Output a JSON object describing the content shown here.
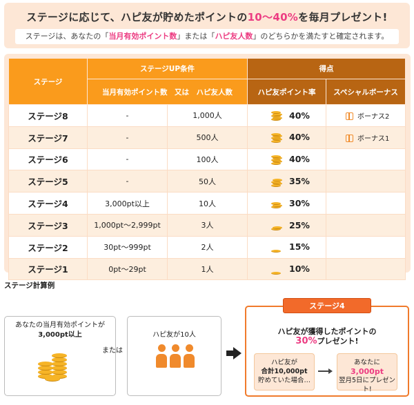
{
  "banner": {
    "title_pre": "ステージに応じて、ハピ友が貯めたポイントの",
    "title_hl": "10〜40%",
    "title_post": "を毎月プレゼント!",
    "sub_pre": "ステージは、あなたの「",
    "sub_pk1": "当月有効ポイント数",
    "sub_mid": "」または「",
    "sub_pk2": "ハピ友人数",
    "sub_post": "」のどちらかを満たすと確定されます。"
  },
  "table": {
    "headers": {
      "stage": "ステージ",
      "condition": "ステージUP条件",
      "points": "得点",
      "condition_sub": "当月有効ポイント数　又は　ハピ友人数",
      "rate": "ハピ友ポイント率",
      "bonus": "スペシャルボーナス"
    },
    "rows": [
      {
        "stage": "ステージ8",
        "points": "-",
        "friends": "1,000人",
        "rate": "40%",
        "bonus": "ボーナス2"
      },
      {
        "stage": "ステージ7",
        "points": "-",
        "friends": "500人",
        "rate": "40%",
        "bonus": "ボーナス1"
      },
      {
        "stage": "ステージ6",
        "points": "-",
        "friends": "100人",
        "rate": "40%",
        "bonus": ""
      },
      {
        "stage": "ステージ5",
        "points": "-",
        "friends": "50人",
        "rate": "35%",
        "bonus": ""
      },
      {
        "stage": "ステージ4",
        "points": "3,000pt以上",
        "friends": "10人",
        "rate": "30%",
        "bonus": ""
      },
      {
        "stage": "ステージ3",
        "points": "1,000pt〜2,999pt",
        "friends": "3人",
        "rate": "25%",
        "bonus": ""
      },
      {
        "stage": "ステージ2",
        "points": "30pt〜999pt",
        "friends": "2人",
        "rate": "15%",
        "bonus": ""
      },
      {
        "stage": "ステージ1",
        "points": "0pt〜29pt",
        "friends": "1人",
        "rate": "10%",
        "bonus": ""
      }
    ]
  },
  "example": {
    "title": "ステージ計算例",
    "box1_line1": "あなたの当月有効ポイントが",
    "box1_line2": "3,000pt以上",
    "or": "または",
    "box2_line1": "ハピ友が10人",
    "stage_tab": "ステージ4",
    "result_line1": "ハピ友が獲得したポイントの",
    "result_pct": "30%",
    "result_post": "プレゼント!",
    "inner1_l1": "ハピ友が",
    "inner1_l2": "合計10,000pt",
    "inner1_l3": "貯めていた場合…",
    "inner2_l1": "あなたに",
    "inner2_l2": "3,000pt",
    "inner2_l3": "翌月5日にプレゼント!"
  },
  "colors": {
    "orange": "#fa9b1c",
    "brown": "#b86513",
    "pink": "#ec3c82",
    "peach": "#fde7d6"
  }
}
